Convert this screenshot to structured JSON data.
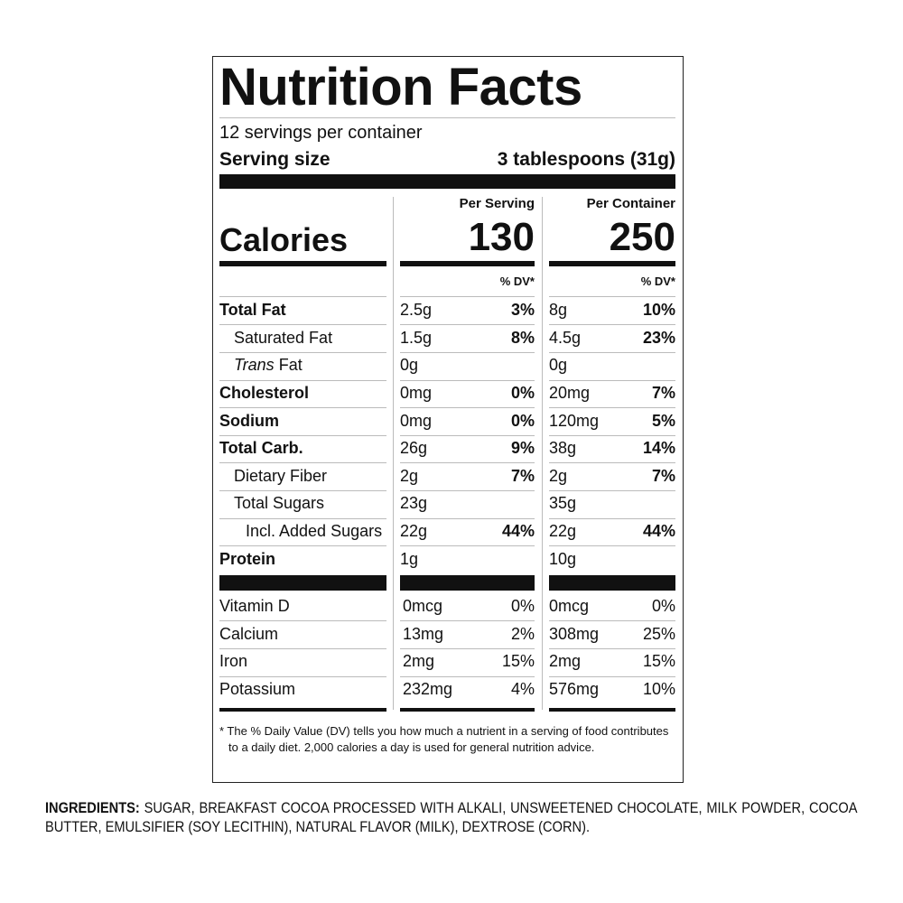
{
  "title": "Nutrition Facts",
  "servings": "12 servings per container",
  "serving_size": {
    "label": "Serving size",
    "value": "3 tablespoons (31g)"
  },
  "columns": [
    "Per Serving",
    "Per Container"
  ],
  "calories": {
    "label": "Calories",
    "per_serving": 130,
    "per_container": 250
  },
  "dv_header": "% DV*",
  "nutrients": [
    {
      "label": "Total Fat",
      "bold": true,
      "indent": 0,
      "serving_amount": "2.5g",
      "serving_dv": "3%",
      "container_amount": "8g",
      "container_dv": "10%"
    },
    {
      "label": "Saturated Fat",
      "bold": false,
      "indent": 1,
      "serving_amount": "1.5g",
      "serving_dv": "8%",
      "container_amount": "4.5g",
      "container_dv": "23%"
    },
    {
      "label_italic": "Trans",
      "label": "Fat",
      "bold": false,
      "indent": 1,
      "serving_amount": "0g",
      "serving_dv": null,
      "container_amount": "0g",
      "container_dv": null
    },
    {
      "label": "Cholesterol",
      "bold": true,
      "indent": 0,
      "serving_amount": "0mg",
      "serving_dv": "0%",
      "container_amount": "20mg",
      "container_dv": "7%"
    },
    {
      "label": "Sodium",
      "bold": true,
      "indent": 0,
      "serving_amount": "0mg",
      "serving_dv": "0%",
      "container_amount": "120mg",
      "container_dv": "5%"
    },
    {
      "label": "Total Carb.",
      "bold": true,
      "indent": 0,
      "serving_amount": "26g",
      "serving_dv": "9%",
      "container_amount": "38g",
      "container_dv": "14%"
    },
    {
      "label": "Dietary Fiber",
      "bold": false,
      "indent": 1,
      "serving_amount": "2g",
      "serving_dv": "7%",
      "container_amount": "2g",
      "container_dv": "7%"
    },
    {
      "label": "Total Sugars",
      "bold": false,
      "indent": 1,
      "serving_amount": "23g",
      "serving_dv": null,
      "container_amount": "35g",
      "container_dv": null
    },
    {
      "label": "Incl. Added Sugars",
      "bold": false,
      "indent": 2,
      "serving_amount": "22g",
      "serving_dv": "44%",
      "container_amount": "22g",
      "container_dv": "44%"
    },
    {
      "label": "Protein",
      "bold": true,
      "indent": 0,
      "serving_amount": "1g",
      "serving_dv": null,
      "container_amount": "10g",
      "container_dv": null
    }
  ],
  "vitamins": [
    {
      "label": "Vitamin D",
      "serving_amount": "0mcg",
      "serving_dv": "0%",
      "container_amount": "0mcg",
      "container_dv": "0%"
    },
    {
      "label": "Calcium",
      "serving_amount": "13mg",
      "serving_dv": "2%",
      "container_amount": "308mg",
      "container_dv": "25%"
    },
    {
      "label": "Iron",
      "serving_amount": "2mg",
      "serving_dv": "15%",
      "container_amount": "2mg",
      "container_dv": "15%"
    },
    {
      "label": "Potassium",
      "serving_amount": "232mg",
      "serving_dv": "4%",
      "container_amount": "576mg",
      "container_dv": "10%"
    }
  ],
  "footnote": "* The % Daily Value (DV) tells you how much a nutrient in a serving of food contributes to a daily diet. 2,000 calories a day is used for general nutrition advice.",
  "ingredients": {
    "label": "INGREDIENTS:",
    "text": "SUGAR, BREAKFAST COCOA PROCESSED WITH ALKALI, UNSWEETENED CHOCOLATE, MILK POWDER, COCOA BUTTER, EMULSIFIER (SOY LECITHIN), NATURAL FLAVOR (MILK), DEXTROSE (CORN)."
  }
}
